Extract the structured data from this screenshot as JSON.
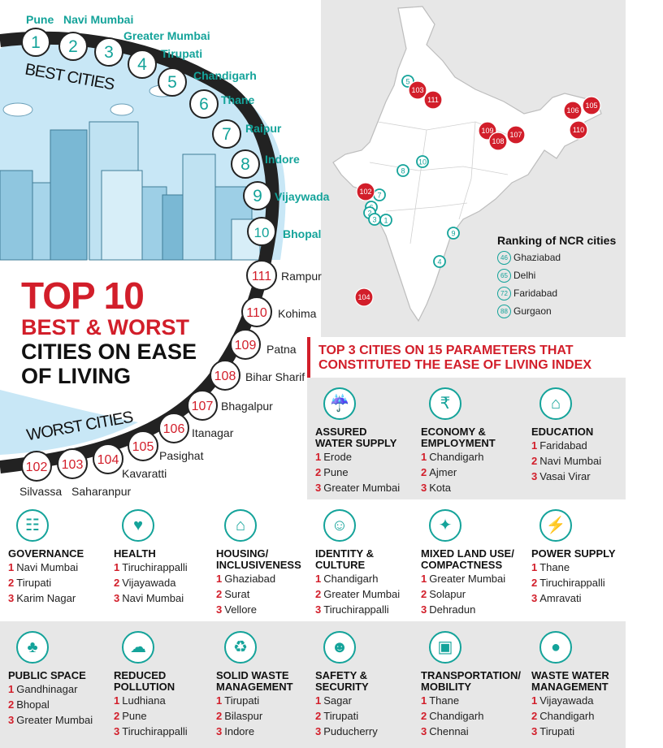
{
  "best_label": "BEST CITIES",
  "worst_label": "WORST CITIES",
  "headline": {
    "line1": "TOP 10",
    "line2": "BEST & WORST",
    "line3": "CITIES ON EASE",
    "line4": "OF LIVING"
  },
  "best_cities": [
    {
      "rank": "1",
      "name": "Pune"
    },
    {
      "rank": "2",
      "name": "Navi Mumbai"
    },
    {
      "rank": "3",
      "name": "Greater Mumbai"
    },
    {
      "rank": "4",
      "name": "Tirupati"
    },
    {
      "rank": "5",
      "name": "Chandigarh"
    },
    {
      "rank": "6",
      "name": "Thane"
    },
    {
      "rank": "7",
      "name": "Raipur"
    },
    {
      "rank": "8",
      "name": "Indore"
    },
    {
      "rank": "9",
      "name": "Vijaywada"
    },
    {
      "rank": "10",
      "name": "Bhopal"
    }
  ],
  "worst_cities": [
    {
      "rank": "111",
      "name": "Rampur"
    },
    {
      "rank": "110",
      "name": "Kohima"
    },
    {
      "rank": "109",
      "name": "Patna"
    },
    {
      "rank": "108",
      "name": "Bihar Sharif"
    },
    {
      "rank": "107",
      "name": "Bhagalpur"
    },
    {
      "rank": "106",
      "name": "Itanagar"
    },
    {
      "rank": "105",
      "name": "Pasighat"
    },
    {
      "rank": "104",
      "name": "Kavaratti"
    },
    {
      "rank": "103",
      "name": "Saharanpur"
    },
    {
      "rank": "102",
      "name": "Silvassa"
    }
  ],
  "map": {
    "markers_teal": [
      "5",
      "8",
      "10",
      "7",
      "6",
      "2",
      "3",
      "1",
      "9",
      "4"
    ],
    "markers_red": [
      "103",
      "111",
      "109",
      "108",
      "107",
      "106",
      "105",
      "110",
      "102",
      "104"
    ],
    "colors": {
      "teal": "#14a39a",
      "red": "#d21e2a",
      "land": "#ffffff",
      "border": "#bdbdbd"
    },
    "ncr_title": "Ranking of NCR cities",
    "ncr": [
      {
        "rank": "46",
        "name": "Ghaziabad"
      },
      {
        "rank": "65",
        "name": "Delhi"
      },
      {
        "rank": "72",
        "name": "Faridabad"
      },
      {
        "rank": "88",
        "name": "Gurgaon"
      }
    ]
  },
  "parameters_heading": {
    "line1": "TOP 3 CITIES ON 15 PARAMETERS THAT",
    "line2": "CONSTITUTED THE EASE OF LIVING INDEX"
  },
  "parameters": [
    {
      "icon": "water-tap-icon",
      "title1": "ASSURED",
      "title2": "WATER SUPPLY",
      "cities": [
        "Erode",
        "Pune",
        "Greater Mumbai"
      ]
    },
    {
      "icon": "coins-icon",
      "title1": "ECONOMY &",
      "title2": "EMPLOYMENT",
      "cities": [
        "Chandigarh",
        "Ajmer",
        "Kota"
      ]
    },
    {
      "icon": "graduation-cap-icon",
      "title1": "EDUCATION",
      "title2": "",
      "cities": [
        "Faridabad",
        "Navi Mumbai",
        "Vasai Virar"
      ]
    },
    {
      "icon": "meeting-icon",
      "title1": "GOVERNANCE",
      "title2": "",
      "cities": [
        "Navi Mumbai",
        "Tirupati",
        "Karim Nagar"
      ]
    },
    {
      "icon": "heart-pulse-icon",
      "title1": "HEALTH",
      "title2": "",
      "cities": [
        "Tiruchirappalli",
        "Vijayawada",
        "Navi Mumbai"
      ]
    },
    {
      "icon": "houses-icon",
      "title1": "HOUSING/",
      "title2": "INCLUSIVENESS",
      "cities": [
        "Ghaziabad",
        "Surat",
        "Vellore"
      ]
    },
    {
      "icon": "theatre-masks-icon",
      "title1": "IDENTITY &",
      "title2": "CULTURE",
      "cities": [
        "Chandigarh",
        "Greater Mumbai",
        "Tiruchirappalli"
      ]
    },
    {
      "icon": "arrows-inward-icon",
      "title1": "MIXED LAND USE/",
      "title2": "COMPACTNESS",
      "cities": [
        "Greater Mumbai",
        "Solapur",
        "Dehradun"
      ]
    },
    {
      "icon": "power-plug-icon",
      "title1": "POWER SUPPLY",
      "title2": "",
      "cities": [
        "Thane",
        "Tiruchirappalli",
        "Amravati"
      ]
    },
    {
      "icon": "park-bench-icon",
      "title1": "PUBLIC SPACE",
      "title2": "",
      "cities": [
        "Gandhinagar",
        "Bhopal",
        "Greater Mumbai"
      ]
    },
    {
      "icon": "car-pollution-icon",
      "title1": "REDUCED",
      "title2": "POLLUTION",
      "cities": [
        "Ludhiana",
        "Pune",
        "Tiruchirappalli"
      ]
    },
    {
      "icon": "recycle-icon",
      "title1": "SOLID WASTE",
      "title2": "MANAGEMENT",
      "cities": [
        "Tirupati",
        "Bilaspur",
        "Indore"
      ]
    },
    {
      "icon": "family-icon",
      "title1": "SAFETY &",
      "title2": "SECURITY",
      "cities": [
        "Sagar",
        "Tirupati",
        "Puducherry"
      ]
    },
    {
      "icon": "bus-car-icon",
      "title1": "TRANSPORTATION/",
      "title2": "MOBILITY",
      "cities": [
        "Thane",
        "Chandigarh",
        "Chennai"
      ]
    },
    {
      "icon": "water-drop-cycle-icon",
      "title1": "WASTE WATER",
      "title2": "MANAGEMENT",
      "cities": [
        "Vijayawada",
        "Chandigarh",
        "Tirupati"
      ]
    }
  ]
}
